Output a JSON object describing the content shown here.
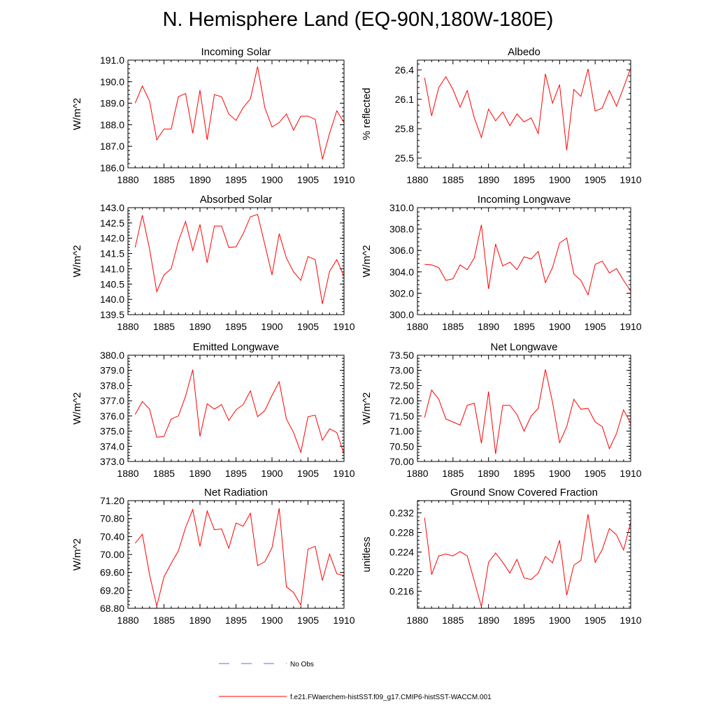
{
  "title": "N. Hemisphere Land (EQ-90N,180W-180E)",
  "chart_data": [
    {
      "type": "line",
      "title": "Incoming Solar",
      "ylabel": "W/m^2",
      "xlim": [
        1880,
        1910
      ],
      "ylim": [
        186.0,
        191.0
      ],
      "xticks": [
        1880,
        1885,
        1890,
        1895,
        1900,
        1905,
        1910
      ],
      "yticks": [
        186.0,
        187.0,
        188.0,
        189.0,
        190.0,
        191.0
      ],
      "ytick_labels": [
        "186.0",
        "187.0",
        "188.0",
        "189.0",
        "190.0",
        "191.0"
      ],
      "series": [
        {
          "color": "#ff0000",
          "x": [
            1881,
            1882,
            1883,
            1884,
            1885,
            1886,
            1887,
            1888,
            1889,
            1890,
            1891,
            1892,
            1893,
            1894,
            1895,
            1896,
            1897,
            1898,
            1899,
            1900,
            1901,
            1902,
            1903,
            1904,
            1905,
            1906,
            1907,
            1908,
            1909,
            1910
          ],
          "values": [
            189.0,
            189.8,
            189.1,
            187.3,
            187.8,
            187.8,
            189.3,
            189.45,
            187.6,
            189.6,
            187.3,
            189.4,
            189.3,
            188.5,
            188.2,
            188.8,
            189.2,
            190.7,
            188.8,
            187.9,
            188.1,
            188.5,
            187.75,
            188.4,
            188.4,
            188.25,
            186.4,
            187.6,
            188.65,
            188.1
          ]
        }
      ]
    },
    {
      "type": "line",
      "title": "Albedo",
      "ylabel": "% reflected",
      "xlim": [
        1880,
        1910
      ],
      "ylim": [
        25.4,
        26.5
      ],
      "xticks": [
        1880,
        1885,
        1890,
        1895,
        1900,
        1905,
        1910
      ],
      "yticks": [
        25.5,
        25.8,
        26.1,
        26.4
      ],
      "ytick_labels": [
        "25.5",
        "25.8",
        "26.1",
        "26.4"
      ],
      "series": [
        {
          "color": "#ff0000",
          "x": [
            1881,
            1882,
            1883,
            1884,
            1885,
            1886,
            1887,
            1888,
            1889,
            1890,
            1891,
            1892,
            1893,
            1894,
            1895,
            1896,
            1897,
            1898,
            1899,
            1900,
            1901,
            1902,
            1903,
            1904,
            1905,
            1906,
            1907,
            1908,
            1909,
            1910
          ],
          "values": [
            26.32,
            25.93,
            26.22,
            26.33,
            26.2,
            26.02,
            26.19,
            25.91,
            25.71,
            26.0,
            25.88,
            25.97,
            25.83,
            25.95,
            25.87,
            25.91,
            25.75,
            26.36,
            26.06,
            26.25,
            25.58,
            26.2,
            26.13,
            26.41,
            25.98,
            26.01,
            26.19,
            26.03,
            26.22,
            26.42
          ]
        }
      ]
    },
    {
      "type": "line",
      "title": "Absorbed Solar",
      "ylabel": "W/m^2",
      "xlim": [
        1880,
        1910
      ],
      "ylim": [
        139.5,
        143.0
      ],
      "xticks": [
        1880,
        1885,
        1890,
        1895,
        1900,
        1905,
        1910
      ],
      "yticks": [
        139.5,
        140.0,
        140.5,
        141.0,
        141.5,
        142.0,
        142.5,
        143.0
      ],
      "ytick_labels": [
        "139.5",
        "140.0",
        "140.5",
        "141.0",
        "141.5",
        "142.0",
        "142.5",
        "143.0"
      ],
      "series": [
        {
          "color": "#ff0000",
          "x": [
            1881,
            1882,
            1883,
            1884,
            1885,
            1886,
            1887,
            1888,
            1889,
            1890,
            1891,
            1892,
            1893,
            1894,
            1895,
            1896,
            1897,
            1898,
            1899,
            1900,
            1901,
            1902,
            1903,
            1904,
            1905,
            1906,
            1907,
            1908,
            1909,
            1910
          ],
          "values": [
            141.7,
            142.75,
            141.65,
            140.25,
            140.8,
            141.0,
            141.9,
            142.55,
            141.6,
            142.45,
            141.2,
            142.4,
            142.4,
            141.7,
            141.72,
            142.15,
            142.7,
            142.78,
            141.8,
            140.8,
            142.15,
            141.35,
            140.9,
            140.62,
            141.4,
            141.3,
            139.85,
            140.92,
            141.3,
            140.75
          ]
        }
      ]
    },
    {
      "type": "line",
      "title": "Incoming Longwave",
      "ylabel": "W/m^2",
      "xlim": [
        1880,
        1910
      ],
      "ylim": [
        300.0,
        310.0
      ],
      "xticks": [
        1880,
        1885,
        1890,
        1895,
        1900,
        1905,
        1910
      ],
      "yticks": [
        300.0,
        302.0,
        304.0,
        306.0,
        308.0,
        310.0
      ],
      "ytick_labels": [
        "300.0",
        "302.0",
        "304.0",
        "306.0",
        "308.0",
        "310.0"
      ],
      "series": [
        {
          "color": "#ff0000",
          "x": [
            1881,
            1882,
            1883,
            1884,
            1885,
            1886,
            1887,
            1888,
            1889,
            1890,
            1891,
            1892,
            1893,
            1894,
            1895,
            1896,
            1897,
            1898,
            1899,
            1900,
            1901,
            1902,
            1903,
            1904,
            1905,
            1906,
            1907,
            1908,
            1909,
            1910
          ],
          "values": [
            304.7,
            304.65,
            304.4,
            303.2,
            303.35,
            304.65,
            304.2,
            305.3,
            308.4,
            302.4,
            306.6,
            304.55,
            304.9,
            304.2,
            305.4,
            305.2,
            305.9,
            303.0,
            304.4,
            306.7,
            307.15,
            303.8,
            303.2,
            301.85,
            304.7,
            305.0,
            303.9,
            304.3,
            303.2,
            302.2
          ]
        }
      ]
    },
    {
      "type": "line",
      "title": "Emitted Longwave",
      "ylabel": "W/m^2",
      "xlim": [
        1880,
        1910
      ],
      "ylim": [
        373.0,
        380.0
      ],
      "xticks": [
        1880,
        1885,
        1890,
        1895,
        1900,
        1905,
        1910
      ],
      "yticks": [
        373.0,
        374.0,
        375.0,
        376.0,
        377.0,
        378.0,
        379.0,
        380.0
      ],
      "ytick_labels": [
        "373.0",
        "374.0",
        "375.0",
        "376.0",
        "377.0",
        "378.0",
        "379.0",
        "380.0"
      ],
      "series": [
        {
          "color": "#ff0000",
          "x": [
            1881,
            1882,
            1883,
            1884,
            1885,
            1886,
            1887,
            1888,
            1889,
            1890,
            1891,
            1892,
            1893,
            1894,
            1895,
            1896,
            1897,
            1898,
            1899,
            1900,
            1901,
            1902,
            1903,
            1904,
            1905,
            1906,
            1907,
            1908,
            1909,
            1910
          ],
          "values": [
            376.1,
            376.95,
            376.45,
            374.6,
            374.65,
            375.8,
            376.0,
            377.3,
            379.05,
            374.65,
            376.8,
            376.45,
            376.75,
            375.7,
            376.4,
            376.75,
            377.65,
            375.95,
            376.35,
            377.35,
            378.25,
            375.8,
            374.9,
            373.6,
            375.95,
            376.05,
            374.4,
            375.15,
            374.9,
            373.5
          ]
        }
      ]
    },
    {
      "type": "line",
      "title": "Net Longwave",
      "ylabel": "W/m^2",
      "xlim": [
        1880,
        1910
      ],
      "ylim": [
        70.0,
        73.5
      ],
      "xticks": [
        1880,
        1885,
        1890,
        1895,
        1900,
        1905,
        1910
      ],
      "yticks": [
        70.0,
        70.5,
        71.0,
        71.5,
        72.0,
        72.5,
        73.0,
        73.5
      ],
      "ytick_labels": [
        "70.00",
        "70.50",
        "71.00",
        "71.50",
        "72.00",
        "72.50",
        "73.00",
        "73.50"
      ],
      "series": [
        {
          "color": "#ff0000",
          "x": [
            1881,
            1882,
            1883,
            1884,
            1885,
            1886,
            1887,
            1888,
            1889,
            1890,
            1891,
            1892,
            1893,
            1894,
            1895,
            1896,
            1897,
            1898,
            1899,
            1900,
            1901,
            1902,
            1903,
            1904,
            1905,
            1906,
            1907,
            1908,
            1909,
            1910
          ],
          "values": [
            71.45,
            72.35,
            72.05,
            71.4,
            71.3,
            71.2,
            71.85,
            71.92,
            70.6,
            72.3,
            70.25,
            71.85,
            71.85,
            71.55,
            71.0,
            71.5,
            71.75,
            73.03,
            71.95,
            70.62,
            71.15,
            72.05,
            71.72,
            71.75,
            71.3,
            71.15,
            70.42,
            70.92,
            71.7,
            71.25
          ]
        }
      ]
    },
    {
      "type": "line",
      "title": "Net Radiation",
      "ylabel": "W/m^2",
      "xlim": [
        1880,
        1910
      ],
      "ylim": [
        68.8,
        71.2
      ],
      "xticks": [
        1880,
        1885,
        1890,
        1895,
        1900,
        1905,
        1910
      ],
      "yticks": [
        68.8,
        69.2,
        69.6,
        70.0,
        70.4,
        70.8,
        71.2
      ],
      "ytick_labels": [
        "68.80",
        "69.20",
        "69.60",
        "70.00",
        "70.40",
        "70.80",
        "71.20"
      ],
      "series": [
        {
          "color": "#ff0000",
          "x": [
            1881,
            1882,
            1883,
            1884,
            1885,
            1886,
            1887,
            1888,
            1889,
            1890,
            1891,
            1892,
            1893,
            1894,
            1895,
            1896,
            1897,
            1898,
            1899,
            1900,
            1901,
            1902,
            1903,
            1904,
            1905,
            1906,
            1907,
            1908,
            1909,
            1910
          ],
          "values": [
            70.25,
            70.45,
            69.55,
            68.85,
            69.5,
            69.8,
            70.08,
            70.6,
            71.0,
            70.18,
            70.97,
            70.55,
            70.57,
            70.14,
            70.7,
            70.63,
            70.92,
            69.75,
            69.84,
            70.15,
            71.03,
            69.28,
            69.15,
            68.87,
            70.12,
            70.18,
            69.42,
            70.01,
            69.57,
            69.53
          ]
        }
      ]
    },
    {
      "type": "line",
      "title": "Ground Snow Covered Fraction",
      "ylabel": "unitless",
      "xlim": [
        1880,
        1910
      ],
      "ylim": [
        0.2125,
        0.2345
      ],
      "xticks": [
        1880,
        1885,
        1890,
        1895,
        1900,
        1905,
        1910
      ],
      "yticks": [
        0.216,
        0.22,
        0.224,
        0.228,
        0.232
      ],
      "ytick_labels": [
        "0.216",
        "0.220",
        "0.224",
        "0.228",
        "0.232"
      ],
      "series": [
        {
          "color": "#ff0000",
          "x": [
            1881,
            1882,
            1883,
            1884,
            1885,
            1886,
            1887,
            1888,
            1889,
            1890,
            1891,
            1892,
            1893,
            1894,
            1895,
            1896,
            1897,
            1898,
            1899,
            1900,
            1901,
            1902,
            1903,
            1904,
            1905,
            1906,
            1907,
            1908,
            1909,
            1910
          ],
          "values": [
            0.231,
            0.2194,
            0.2232,
            0.2236,
            0.2232,
            0.2241,
            0.2232,
            0.2181,
            0.2128,
            0.2219,
            0.2238,
            0.2219,
            0.2197,
            0.2225,
            0.2187,
            0.2184,
            0.2197,
            0.2231,
            0.2218,
            0.2264,
            0.2152,
            0.2213,
            0.2223,
            0.2317,
            0.2219,
            0.2245,
            0.2288,
            0.2275,
            0.2244,
            0.2301
          ]
        }
      ]
    }
  ],
  "legend": {
    "position": "bottom-center",
    "items": [
      {
        "label": "No Obs",
        "color": "#6a6ad8",
        "style": "dashed"
      },
      {
        "label": "f.e21.FWaerchem-histSST.f09_g17.CMIP6-histSST-WACCM.001",
        "color": "#ff0000",
        "style": "solid"
      }
    ]
  }
}
